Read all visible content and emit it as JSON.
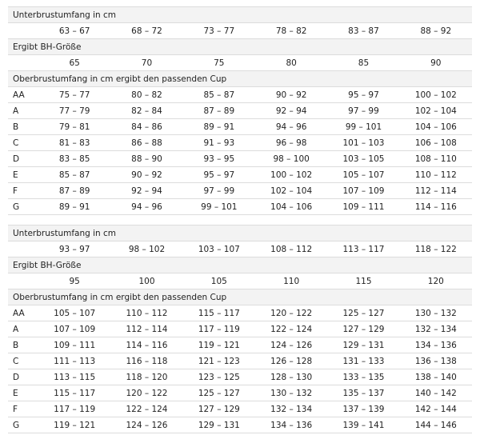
{
  "sections": [
    {
      "underbust_label": "Unterbrustumfang in cm",
      "underbust": [
        "63 – 67",
        "68 – 72",
        "73 – 77",
        "78 – 82",
        "83 – 87",
        "88 – 92"
      ],
      "size_label": "Ergibt BH-Größe",
      "sizes": [
        "65",
        "70",
        "75",
        "80",
        "85",
        "90"
      ],
      "cup_label": "Oberbrustumfang in cm ergibt den passenden Cup",
      "cups": [
        {
          "cup": "AA",
          "values": [
            "75 – 77",
            "80 – 82",
            "85 – 87",
            "90 – 92",
            "95 – 97",
            "100 – 102"
          ]
        },
        {
          "cup": "A",
          "values": [
            "77 – 79",
            "82 – 84",
            "87 – 89",
            "92 – 94",
            "97 – 99",
            "102 – 104"
          ]
        },
        {
          "cup": "B",
          "values": [
            "79 – 81",
            "84 – 86",
            "89 – 91",
            "94 – 96",
            "99 – 101",
            "104 – 106"
          ]
        },
        {
          "cup": "C",
          "values": [
            "81 – 83",
            "86 – 88",
            "91 – 93",
            "96 – 98",
            "101 – 103",
            "106 – 108"
          ]
        },
        {
          "cup": "D",
          "values": [
            "83 – 85",
            "88 – 90",
            "93 – 95",
            "98 – 100",
            "103 – 105",
            "108 – 110"
          ]
        },
        {
          "cup": "E",
          "values": [
            "85 – 87",
            "90 – 92",
            "95 – 97",
            "100 – 102",
            "105 – 107",
            "110 – 112"
          ]
        },
        {
          "cup": "F",
          "values": [
            "87 – 89",
            "92 – 94",
            "97 – 99",
            "102 – 104",
            "107 – 109",
            "112 – 114"
          ]
        },
        {
          "cup": "G",
          "values": [
            "89 – 91",
            "94 – 96",
            "99 – 101",
            "104 – 106",
            "109 – 111",
            "114 – 116"
          ]
        }
      ]
    },
    {
      "underbust_label": "Unterbrustumfang in cm",
      "underbust": [
        "93 – 97",
        "98 – 102",
        "103 – 107",
        "108 – 112",
        "113 – 117",
        "118 – 122"
      ],
      "size_label": "Ergibt BH-Größe",
      "sizes": [
        "95",
        "100",
        "105",
        "110",
        "115",
        "120"
      ],
      "cup_label": "Oberbrustumfang in cm ergibt den passenden Cup",
      "cups": [
        {
          "cup": "AA",
          "values": [
            "105 – 107",
            "110 – 112",
            "115 – 117",
            "120 – 122",
            "125 – 127",
            "130 – 132"
          ]
        },
        {
          "cup": "A",
          "values": [
            "107 – 109",
            "112 – 114",
            "117 – 119",
            "122 – 124",
            "127 – 129",
            "132 – 134"
          ]
        },
        {
          "cup": "B",
          "values": [
            "109 – 111",
            "114 – 116",
            "119 – 121",
            "124 – 126",
            "129 – 131",
            "134 – 136"
          ]
        },
        {
          "cup": "C",
          "values": [
            "111 – 113",
            "116 – 118",
            "121 – 123",
            "126 – 128",
            "131 – 133",
            "136 – 138"
          ]
        },
        {
          "cup": "D",
          "values": [
            "113 – 115",
            "118 – 120",
            "123 – 125",
            "128 – 130",
            "133 – 135",
            "138 – 140"
          ]
        },
        {
          "cup": "E",
          "values": [
            "115 – 117",
            "120 – 122",
            "125 – 127",
            "130 – 132",
            "135 – 137",
            "140 – 142"
          ]
        },
        {
          "cup": "F",
          "values": [
            "117 – 119",
            "122 – 124",
            "127 – 129",
            "132 – 134",
            "137 – 139",
            "142 – 144"
          ]
        },
        {
          "cup": "G",
          "values": [
            "119 – 121",
            "124 – 126",
            "129 – 131",
            "134 – 136",
            "139 – 141",
            "144 – 146"
          ]
        }
      ]
    }
  ]
}
